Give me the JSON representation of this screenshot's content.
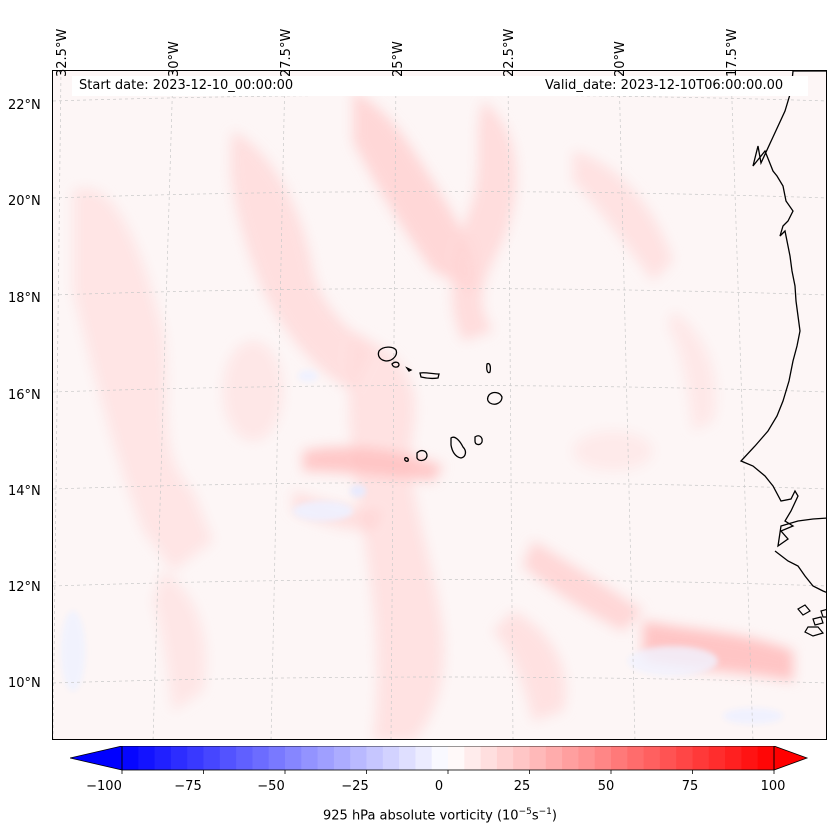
{
  "map": {
    "start_date": "Start date: 2023-12-10_00:00:00",
    "valid_date": "Valid_date: 2023-12-10T06:00:00.00",
    "longitude_labels": [
      "32.5°W",
      "30°W",
      "27.5°W",
      "25°W",
      "22.5°W",
      "20°W",
      "17.5°W"
    ],
    "latitude_labels": [
      "22°N",
      "20°N",
      "18°N",
      "16°N",
      "14°N",
      "12°N",
      "10°N"
    ],
    "features": [
      "Cape Verde islands",
      "West African coastline"
    ],
    "gridlines": true
  },
  "colorbar": {
    "title": "925 hPa absolute vorticity (10",
    "title_sup1": "−5",
    "title_mid": "s",
    "title_sup2": "−1",
    "title_end": ")",
    "tick_labels": [
      "−100",
      "−75",
      "−50",
      "−25",
      "0",
      "25",
      "50",
      "75",
      "100"
    ],
    "min": -100,
    "max": 100,
    "step": 5,
    "low_color": "#0000ff",
    "mid_color": "#ffffff",
    "high_color": "#ff0000"
  }
}
